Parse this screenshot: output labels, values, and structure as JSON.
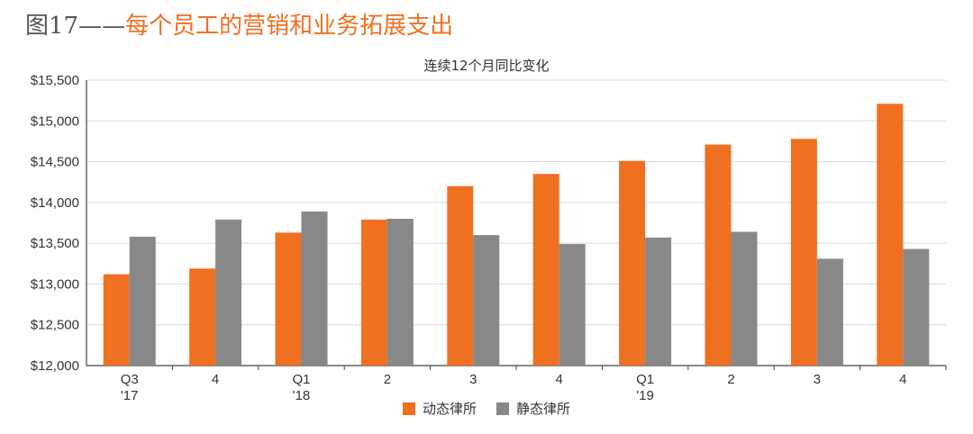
{
  "header": {
    "figure_number": "图17——",
    "figure_title": "每个员工的营销和业务拓展支出"
  },
  "chart_data": {
    "type": "bar",
    "title": "每个员工的营销和业务拓展支出",
    "subtitle": "连续12个月同比变化",
    "categories": [
      [
        "Q3",
        "'17"
      ],
      [
        "4",
        ""
      ],
      [
        "Q1",
        "'18"
      ],
      [
        "2",
        ""
      ],
      [
        "3",
        ""
      ],
      [
        "4",
        ""
      ],
      [
        "Q1",
        "'19"
      ],
      [
        "2",
        ""
      ],
      [
        "3",
        ""
      ],
      [
        "4",
        ""
      ]
    ],
    "series": [
      {
        "name": "动态律所",
        "color": "#f07022",
        "values": [
          13120,
          13190,
          13630,
          13790,
          14200,
          14350,
          14510,
          14710,
          14780,
          15210
        ]
      },
      {
        "name": "静态律所",
        "color": "#888888",
        "values": [
          13580,
          13790,
          13890,
          13800,
          13600,
          13490,
          13570,
          13640,
          13310,
          13430
        ]
      }
    ],
    "yticks": [
      "$12,000",
      "$12,500",
      "$13,000",
      "$13,500",
      "$14,000",
      "$14,500",
      "$15,000",
      "$15,500"
    ],
    "ylim": [
      12000,
      15500
    ],
    "ytick_step": 500,
    "grid": true,
    "legend_position": "bottom"
  }
}
